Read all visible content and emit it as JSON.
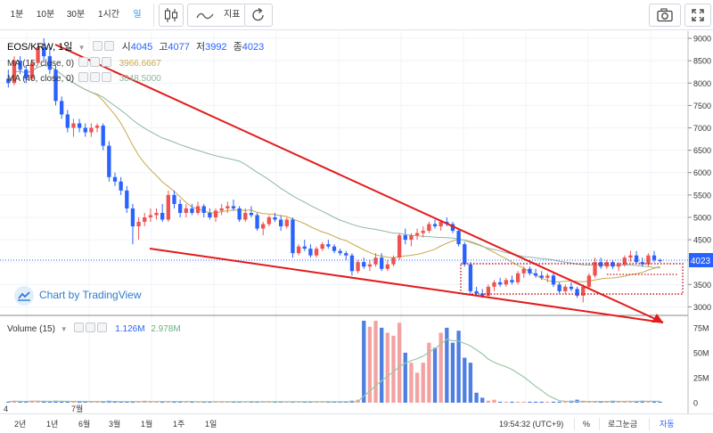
{
  "toolbar": {
    "intervals": [
      {
        "label": "1분",
        "active": false
      },
      {
        "label": "10분",
        "active": false
      },
      {
        "label": "30분",
        "active": false
      },
      {
        "label": "1시간",
        "active": false
      },
      {
        "label": "일",
        "active": true
      }
    ],
    "chart_type_icon": "candles-icon",
    "indicators_label": "지표",
    "indicators_icon": "wave-icon",
    "refresh_icon": "refresh-icon",
    "snapshot_icon": "camera-icon",
    "fullscreen_icon": "fullscreen-icon"
  },
  "main_legend": {
    "symbol": "EOS/KRW, 1일",
    "open_label": "시",
    "open": "4045",
    "high_label": "고",
    "high": "4077",
    "low_label": "저",
    "low": "3992",
    "close_label": "종",
    "close": "4023"
  },
  "ma_legends": [
    {
      "label": "MA (15, close, 0)",
      "value": "3966.6667",
      "color": "#c8a84a"
    },
    {
      "label": "MA (40, close, 0)",
      "value": "3848.5000",
      "color": "#8fb8a4"
    }
  ],
  "volume_legend": {
    "label": "Volume (15)",
    "value1": "1.126M",
    "value2": "2.978M",
    "value2_color": "#6fae7f"
  },
  "attribution": "Chart by TradingView",
  "price_axis": {
    "ticks": [
      "9000",
      "8500",
      "8000",
      "7500",
      "7000",
      "6500",
      "6000",
      "5500",
      "5000",
      "4500",
      "4023",
      "3500",
      "3000"
    ],
    "last_price": "4023",
    "last_price_color": "#2962ff"
  },
  "volume_axis": {
    "ticks": [
      "75M",
      "50M",
      "25M",
      "0"
    ]
  },
  "time_axis": {
    "labels": [
      "4",
      "7월"
    ]
  },
  "colors": {
    "up": "#ef5350",
    "down": "#2962ff",
    "drawing": "#e31b1b",
    "ma15": "#c8a84a",
    "ma40": "#8fb8a4"
  },
  "chart_data": {
    "type": "candlestick",
    "ylim": [
      2850,
      9100
    ],
    "volume_ylim": [
      0,
      82
    ],
    "volume_unit": "M",
    "candles": [
      [
        8100,
        8300,
        7900,
        8000
      ],
      [
        8000,
        8600,
        7950,
        8500
      ],
      [
        8500,
        8600,
        8200,
        8300
      ],
      [
        8300,
        8400,
        8000,
        8100
      ],
      [
        8100,
        8500,
        8050,
        8450
      ],
      [
        8450,
        8900,
        8400,
        8800
      ],
      [
        8800,
        9000,
        8500,
        8600
      ],
      [
        8600,
        8800,
        8200,
        8300
      ],
      [
        8300,
        8400,
        7500,
        7600
      ],
      [
        7600,
        7700,
        7200,
        7300
      ],
      [
        7300,
        7400,
        6900,
        7000
      ],
      [
        7000,
        7200,
        6800,
        7100
      ],
      [
        7100,
        7200,
        6900,
        7000
      ],
      [
        7000,
        7100,
        6800,
        6900
      ],
      [
        6900,
        7100,
        6800,
        7000
      ],
      [
        7000,
        7100,
        6900,
        7050
      ],
      [
        7050,
        7100,
        6500,
        6600
      ],
      [
        6600,
        6700,
        5800,
        5900
      ],
      [
        5900,
        6000,
        5700,
        5800
      ],
      [
        5800,
        5900,
        5500,
        5600
      ],
      [
        5600,
        5700,
        5100,
        5200
      ],
      [
        5200,
        5300,
        4400,
        4800
      ],
      [
        4800,
        5000,
        4500,
        4900
      ],
      [
        4900,
        5100,
        4800,
        5000
      ],
      [
        5000,
        5200,
        4900,
        5050
      ],
      [
        5050,
        5200,
        4950,
        5100
      ],
      [
        5100,
        5300,
        4900,
        4950
      ],
      [
        4950,
        5600,
        4900,
        5500
      ],
      [
        5500,
        5600,
        5200,
        5300
      ],
      [
        5300,
        5400,
        5000,
        5100
      ],
      [
        5100,
        5300,
        5000,
        5200
      ],
      [
        5200,
        5300,
        5050,
        5100
      ],
      [
        5100,
        5350,
        5050,
        5250
      ],
      [
        5250,
        5300,
        5000,
        5100
      ],
      [
        5100,
        5200,
        4950,
        5000
      ],
      [
        5000,
        5200,
        4900,
        5150
      ],
      [
        5150,
        5300,
        5050,
        5200
      ],
      [
        5200,
        5350,
        5100,
        5250
      ],
      [
        5250,
        5400,
        5150,
        5200
      ],
      [
        5200,
        5250,
        4900,
        4950
      ],
      [
        4950,
        5200,
        4900,
        5100
      ],
      [
        5100,
        5250,
        5000,
        5050
      ],
      [
        5050,
        5100,
        4700,
        4750
      ],
      [
        4750,
        4900,
        4600,
        4850
      ],
      [
        4850,
        5050,
        4800,
        5000
      ],
      [
        5000,
        5100,
        4900,
        4950
      ],
      [
        4950,
        5050,
        4700,
        4800
      ],
      [
        4800,
        5000,
        4750,
        4950
      ],
      [
        4950,
        5000,
        4100,
        4200
      ],
      [
        4200,
        4400,
        4150,
        4350
      ],
      [
        4350,
        4500,
        4250,
        4300
      ],
      [
        4300,
        4400,
        4100,
        4150
      ],
      [
        4150,
        4350,
        4100,
        4300
      ],
      [
        4300,
        4450,
        4250,
        4400
      ],
      [
        4400,
        4500,
        4300,
        4350
      ],
      [
        4350,
        4400,
        4200,
        4250
      ],
      [
        4250,
        4300,
        4150,
        4200
      ],
      [
        4200,
        4250,
        4050,
        4150
      ],
      [
        4150,
        4200,
        3700,
        3800
      ],
      [
        3800,
        4050,
        3750,
        4000
      ],
      [
        4000,
        4100,
        3850,
        3900
      ],
      [
        3900,
        4050,
        3800,
        3950
      ],
      [
        3950,
        4200,
        3900,
        4100
      ],
      [
        4100,
        4200,
        3800,
        3850
      ],
      [
        3850,
        4050,
        3800,
        3950
      ],
      [
        3950,
        4150,
        3900,
        4100
      ],
      [
        4100,
        4650,
        4050,
        4600
      ],
      [
        4600,
        4750,
        4400,
        4500
      ],
      [
        4500,
        4650,
        4350,
        4600
      ],
      [
        4600,
        4750,
        4500,
        4650
      ],
      [
        4650,
        4800,
        4550,
        4700
      ],
      [
        4700,
        4900,
        4650,
        4850
      ],
      [
        4850,
        4950,
        4750,
        4800
      ],
      [
        4800,
        4950,
        4700,
        4900
      ],
      [
        4900,
        5000,
        4800,
        4850
      ],
      [
        4850,
        4900,
        4650,
        4700
      ],
      [
        4700,
        4750,
        4350,
        4400
      ],
      [
        4400,
        4450,
        3900,
        3950
      ],
      [
        3950,
        4000,
        3300,
        3350
      ],
      [
        3350,
        3450,
        3250,
        3300
      ],
      [
        3300,
        3400,
        3200,
        3250
      ],
      [
        3250,
        3500,
        3200,
        3450
      ],
      [
        3450,
        3600,
        3350,
        3550
      ],
      [
        3550,
        3650,
        3450,
        3500
      ],
      [
        3500,
        3650,
        3450,
        3600
      ],
      [
        3600,
        3700,
        3500,
        3550
      ],
      [
        3550,
        3800,
        3500,
        3750
      ],
      [
        3750,
        3900,
        3650,
        3850
      ],
      [
        3850,
        3900,
        3700,
        3750
      ],
      [
        3750,
        3850,
        3650,
        3700
      ],
      [
        3700,
        3800,
        3600,
        3650
      ],
      [
        3650,
        3750,
        3550,
        3700
      ],
      [
        3700,
        3750,
        3450,
        3500
      ],
      [
        3500,
        3550,
        3300,
        3350
      ],
      [
        3350,
        3500,
        3300,
        3450
      ],
      [
        3450,
        3550,
        3350,
        3400
      ],
      [
        3400,
        3450,
        3200,
        3250
      ],
      [
        3250,
        3500,
        3100,
        3450
      ],
      [
        3450,
        3750,
        3400,
        3700
      ],
      [
        3700,
        4100,
        3650,
        4000
      ],
      [
        4000,
        4100,
        3850,
        3900
      ],
      [
        3900,
        4050,
        3850,
        4000
      ],
      [
        4000,
        4050,
        3850,
        3900
      ],
      [
        3900,
        4000,
        3800,
        3950
      ],
      [
        3950,
        4150,
        3900,
        4100
      ],
      [
        4100,
        4250,
        4000,
        4150
      ],
      [
        4150,
        4250,
        3950,
        4000
      ],
      [
        4000,
        4100,
        3900,
        3950
      ],
      [
        3950,
        4200,
        3900,
        4150
      ],
      [
        4150,
        4250,
        4000,
        4050
      ],
      [
        4045,
        4077,
        3992,
        4023
      ]
    ],
    "volumes": [
      1,
      2,
      1,
      1,
      2,
      2,
      1,
      1,
      2,
      1,
      1,
      1,
      1,
      1,
      1,
      1,
      1,
      2,
      1,
      1,
      1,
      1,
      1,
      2,
      1,
      1,
      1,
      1,
      1,
      1,
      1,
      1,
      1,
      1,
      1,
      1,
      1,
      1,
      1,
      1,
      1,
      1,
      1,
      1,
      1,
      1,
      1,
      1,
      1,
      1,
      1,
      1,
      1,
      1,
      1,
      1,
      1,
      1,
      2,
      3,
      82,
      76,
      82,
      75,
      70,
      67,
      80,
      50,
      40,
      30,
      40,
      60,
      55,
      70,
      75,
      60,
      72,
      45,
      40,
      10,
      5,
      2,
      3,
      1,
      1,
      1,
      1,
      1,
      1,
      1,
      1,
      1,
      1,
      1,
      1,
      2,
      3,
      2,
      1,
      1,
      1,
      1,
      2,
      1,
      1,
      1,
      1,
      2,
      1,
      1,
      1
    ],
    "ma15_value": "3966.6667",
    "ma40_value": "3848.5000"
  },
  "bottom_bar": {
    "ranges": [
      "2년",
      "1년",
      "6월",
      "3월",
      "1월",
      "1주",
      "1일"
    ],
    "clock": "19:54:32 (UTC+9)",
    "percent_label": "%",
    "log_label": "로그눈금",
    "auto_label": "자동"
  }
}
